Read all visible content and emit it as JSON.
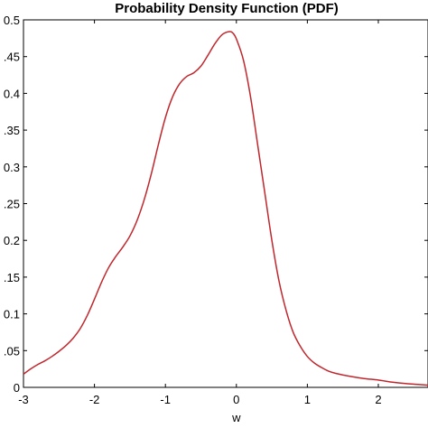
{
  "chart_data": {
    "type": "line",
    "title": "Probability Density Function (PDF)",
    "xlabel": "w",
    "ylabel": "",
    "xlim": [
      -3,
      2.7
    ],
    "ylim": [
      0,
      0.5
    ],
    "grid": false,
    "x_ticks": [
      -3,
      -2,
      -1,
      0,
      1,
      2
    ],
    "x_tick_labels": [
      "-3",
      "-2",
      "-1",
      "0",
      "1",
      "2"
    ],
    "y_ticks": [
      0,
      0.05,
      0.1,
      0.15,
      0.2,
      0.25,
      0.3,
      0.35,
      0.4,
      0.45,
      0.5
    ],
    "y_tick_labels": [
      "0",
      ".05",
      "0.1",
      ".15",
      "0.2",
      ".25",
      "0.3",
      ".35",
      "0.4",
      ".45",
      "0.5"
    ],
    "series": [
      {
        "color": "#c0272d",
        "x": [
          -3.0,
          -2.9,
          -2.8,
          -2.7,
          -2.6,
          -2.5,
          -2.4,
          -2.3,
          -2.2,
          -2.1,
          -2.0,
          -1.9,
          -1.8,
          -1.7,
          -1.6,
          -1.5,
          -1.4,
          -1.3,
          -1.2,
          -1.1,
          -1.0,
          -0.9,
          -0.8,
          -0.7,
          -0.6,
          -0.5,
          -0.4,
          -0.3,
          -0.2,
          -0.1,
          -0.05,
          0.0,
          0.1,
          0.2,
          0.3,
          0.4,
          0.5,
          0.6,
          0.7,
          0.8,
          0.9,
          1.0,
          1.1,
          1.2,
          1.3,
          1.4,
          1.6,
          1.8,
          2.0,
          2.2,
          2.4,
          2.7
        ],
        "y": [
          0.018,
          0.025,
          0.031,
          0.036,
          0.042,
          0.049,
          0.057,
          0.067,
          0.08,
          0.098,
          0.12,
          0.143,
          0.163,
          0.178,
          0.191,
          0.206,
          0.227,
          0.255,
          0.29,
          0.33,
          0.367,
          0.395,
          0.413,
          0.423,
          0.428,
          0.437,
          0.452,
          0.468,
          0.48,
          0.484,
          0.482,
          0.474,
          0.445,
          0.395,
          0.33,
          0.265,
          0.2,
          0.145,
          0.105,
          0.075,
          0.056,
          0.042,
          0.033,
          0.027,
          0.022,
          0.019,
          0.015,
          0.012,
          0.01,
          0.007,
          0.005,
          0.003
        ]
      }
    ]
  }
}
